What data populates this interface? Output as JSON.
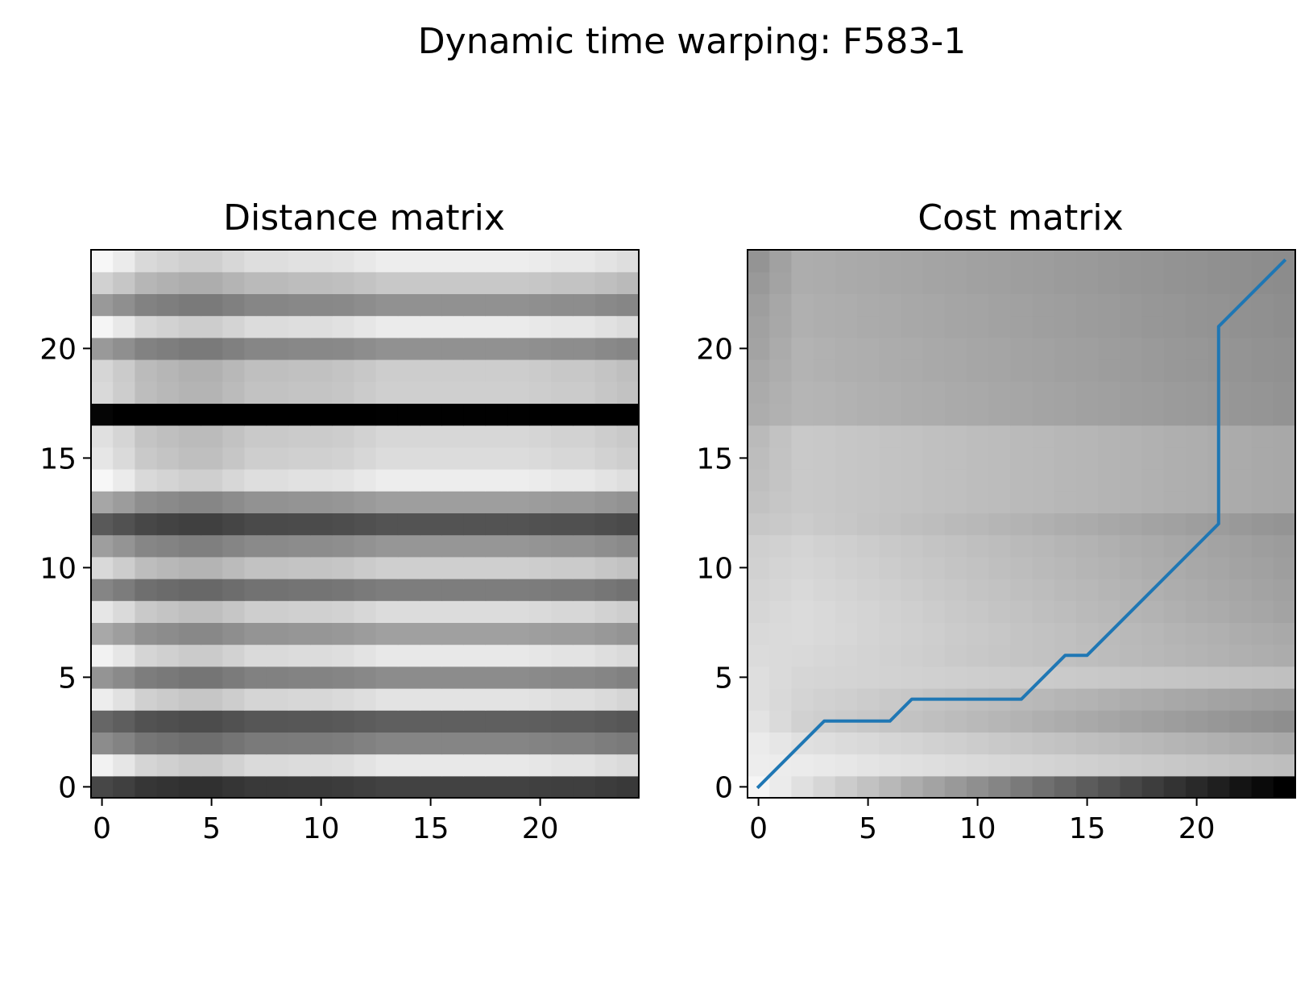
{
  "figure": {
    "suptitle": "Dynamic time warping: F583-1"
  },
  "chart_data": [
    {
      "type": "heatmap",
      "title": "Distance matrix",
      "xlabel": "",
      "ylabel": "",
      "colormap": "gray_r",
      "xlim": [
        -0.5,
        24.5
      ],
      "ylim": [
        -0.5,
        24.5
      ],
      "xticks": [
        0,
        5,
        10,
        15,
        20
      ],
      "yticks": [
        0,
        5,
        10,
        15,
        20
      ],
      "grid": false,
      "col_offsets": [
        0.0,
        0.05,
        0.12,
        0.14,
        0.16,
        0.16,
        0.13,
        0.1,
        0.1,
        0.09,
        0.09,
        0.08,
        0.06,
        0.04,
        0.04,
        0.04,
        0.04,
        0.04,
        0.04,
        0.04,
        0.05,
        0.06,
        0.06,
        0.08,
        0.1
      ],
      "row_levels": [
        0.72,
        0.05,
        0.45,
        0.6,
        0.07,
        0.42,
        0.05,
        0.34,
        0.1,
        0.48,
        0.15,
        0.38,
        0.65,
        0.35,
        0.03,
        0.1,
        0.12,
        0.98,
        0.15,
        0.16,
        0.4,
        0.04,
        0.4,
        0.18,
        0.03
      ]
    },
    {
      "type": "heatmap",
      "title": "Cost matrix",
      "xlabel": "",
      "ylabel": "",
      "colormap": "gray_r",
      "xlim": [
        -0.5,
        24.5
      ],
      "ylim": [
        -0.5,
        24.5
      ],
      "xticks": [
        0,
        5,
        10,
        15,
        20
      ],
      "yticks": [
        0,
        5,
        10,
        15,
        20
      ],
      "grid": false,
      "col0_levels": [
        0.05,
        0.07,
        0.08,
        0.11,
        0.13,
        0.13,
        0.14,
        0.15,
        0.16,
        0.17,
        0.18,
        0.19,
        0.22,
        0.24,
        0.25,
        0.26,
        0.27,
        0.32,
        0.33,
        0.34,
        0.36,
        0.37,
        0.38,
        0.4,
        0.42
      ],
      "row_band_levels": [
        0.0,
        0.08,
        0.12,
        0.18,
        0.17,
        0.16,
        0.15,
        0.14,
        0.14,
        0.15,
        0.16,
        0.17,
        0.2,
        0.21,
        0.21,
        0.21,
        0.21,
        0.29,
        0.29,
        0.3,
        0.3,
        0.31,
        0.31,
        0.32,
        0.32
      ],
      "row_band_slope": [
        0.0,
        0.008,
        0.01,
        0.012,
        0.01,
        0.004,
        0.008,
        0.009,
        0.01,
        0.01,
        0.01,
        0.01,
        0.01,
        0.006,
        0.006,
        0.006,
        0.006,
        0.006,
        0.006,
        0.006,
        0.006,
        0.006,
        0.006,
        0.006,
        0.006
      ],
      "bottom_row_start": 0.04,
      "bottom_row_end": 1.0,
      "path_color": "#1f77b4",
      "warping_path": {
        "x": [
          0,
          3,
          6,
          7,
          12,
          14,
          15,
          21,
          21,
          24
        ],
        "y": [
          0,
          3,
          3,
          4,
          4,
          6,
          6,
          12,
          21,
          24
        ]
      }
    }
  ]
}
